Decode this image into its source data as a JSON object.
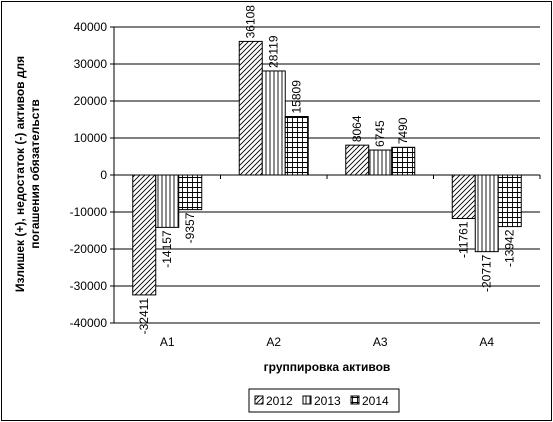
{
  "chart_data": {
    "type": "bar",
    "categories": [
      "А1",
      "А2",
      "А3",
      "А4"
    ],
    "series": [
      {
        "name": "2012",
        "values": [
          -32411,
          36108,
          8064,
          -11761
        ],
        "pattern": "diagonal"
      },
      {
        "name": "2013",
        "values": [
          -14157,
          28119,
          6745,
          -20717
        ],
        "pattern": "vertical"
      },
      {
        "name": "2014",
        "values": [
          -9357,
          15809,
          7490,
          -13942
        ],
        "pattern": "grid"
      }
    ],
    "title": "",
    "xlabel": "группировка активов",
    "ylabel": [
      "Излишек (+), недостаток (-) активов для",
      "погашения обязательств"
    ],
    "ylim": [
      -40000,
      40000
    ],
    "yticks": [
      -40000,
      -30000,
      -20000,
      -10000,
      0,
      10000,
      20000,
      30000,
      40000
    ],
    "grid": true,
    "legend_position": "bottom"
  }
}
